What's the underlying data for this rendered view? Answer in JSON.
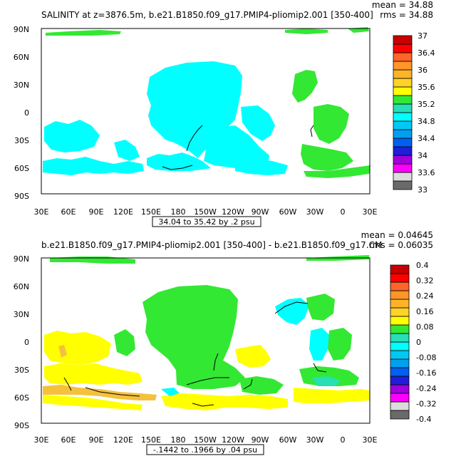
{
  "colors": {
    "land": "#ffffff",
    "frame": "#000000",
    "top_ocean": "#00ffff",
    "top_atlantic": "#33e833",
    "bottom_green": "#33e833",
    "bottom_yellow": "#ffff00",
    "bottom_gold": "#f5c13c",
    "bottom_cyan": "#00ffff",
    "bottom_teal": "#26dfb4"
  },
  "lat_labels": [
    "90N",
    "60N",
    "30N",
    "0",
    "30S",
    "60S",
    "90S"
  ],
  "lon_labels": [
    "30E",
    "60E",
    "90E",
    "120E",
    "150E",
    "180",
    "150W",
    "120W",
    "90W",
    "60W",
    "30W",
    "0",
    "30E"
  ],
  "panels": [
    {
      "title": "SALINITY at z=3876.5m, b.e21.B1850.f09_g17.PMIP4-pliomip2.001 [350-400]",
      "mean": "mean = 34.88",
      "rms": "rms = 34.88",
      "contour_info": "34.04 to 35.42 by .2 psu",
      "colorbar": {
        "colors": [
          "#6a6a6a",
          "#dcdcdc",
          "#ff00ff",
          "#a000dc",
          "#1e1edc",
          "#0060f0",
          "#00a0f0",
          "#00c8f5",
          "#00ffff",
          "#26dfb4",
          "#33e833",
          "#ffff00",
          "#ffd228",
          "#ffb428",
          "#ff9628",
          "#ff6428",
          "#ff0000",
          "#c80000"
        ],
        "labels": [
          "33",
          "33.6",
          "34",
          "34.4",
          "34.8",
          "35.2",
          "35.6",
          "36",
          "36.4",
          "37"
        ]
      }
    },
    {
      "title": "b.e21.B1850.f09_g17.PMIP4-pliomip2.001 [350-400] - b.e21.B1850.f09_g17.CM",
      "mean": "mean = 0.04645",
      "rms": "rms = 0.06035",
      "contour_info": "-.1442 to .1966 by .04 psu",
      "colorbar": {
        "colors": [
          "#6a6a6a",
          "#dcdcdc",
          "#ff00ff",
          "#a000dc",
          "#1e1edc",
          "#0060f0",
          "#00a0f0",
          "#00c8f5",
          "#00ffff",
          "#26dfb4",
          "#33e833",
          "#ffff00",
          "#ffd228",
          "#ffb428",
          "#ff9628",
          "#ff6428",
          "#ff0000",
          "#c80000"
        ],
        "labels": [
          "-0.4",
          "-0.32",
          "-0.24",
          "-0.16",
          "-0.08",
          "0",
          "0.08",
          "0.16",
          "0.24",
          "0.32",
          "0.4"
        ]
      }
    }
  ]
}
